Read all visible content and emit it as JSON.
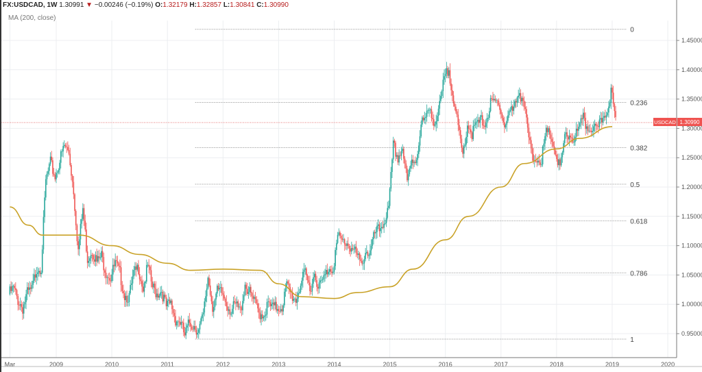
{
  "header": {
    "symbol": "FX:USDCAD, 1W",
    "last": "1.30991",
    "change": "−0.00246 (−0.19%)",
    "open_label": "O:",
    "open": "1.32179",
    "high_label": "H:",
    "high": "1.32857",
    "low_label": "L:",
    "low": "1.30841",
    "close_label": "C:",
    "close": "1.30990",
    "direction_icon": "triangle-down-icon"
  },
  "indicator_label": "MA (200, close)",
  "price_tag": {
    "symbol": "USDCAD",
    "value": "1.30990"
  },
  "colors": {
    "up": "#26a69a",
    "down": "#ef5350",
    "ma": "#c9a227",
    "price_line": "#e57373",
    "fib": "#888888"
  },
  "chart_data": {
    "type": "candlestick",
    "timeframe": "1W",
    "ylim": [
      0.91,
      1.49
    ],
    "y_ticks": [
      "0.95000",
      "1.00000",
      "1.05000",
      "1.10000",
      "1.15000",
      "1.20000",
      "1.25000",
      "1.30000",
      "1.35000",
      "1.40000",
      "1.45000"
    ],
    "x_ticks": [
      "Mar",
      "2009",
      "2010",
      "2011",
      "2012",
      "2013",
      "2014",
      "2015",
      "2016",
      "2017",
      "2018",
      "2019",
      "2020"
    ],
    "grid": true,
    "start_month": "2008-03",
    "monthly_close": [
      1.027,
      1.007,
      0.994,
      1.018,
      1.024,
      1.062,
      1.064,
      1.21,
      1.24,
      1.218,
      1.245,
      1.27,
      1.259,
      1.194,
      1.092,
      1.163,
      1.078,
      1.094,
      1.071,
      1.082,
      1.056,
      1.046,
      1.069,
      1.052,
      1.016,
      1.013,
      1.05,
      1.063,
      1.028,
      1.064,
      1.029,
      1.019,
      1.024,
      0.995,
      1.001,
      0.975,
      0.97,
      0.946,
      0.969,
      0.964,
      0.955,
      0.98,
      1.047,
      0.997,
      1.02,
      1.019,
      1.003,
      0.989,
      0.998,
      0.988,
      1.035,
      1.018,
      1.003,
      0.986,
      0.983,
      0.999,
      0.993,
      0.995,
      0.997,
      1.031,
      1.016,
      1.008,
      1.036,
      1.051,
      1.027,
      1.053,
      1.03,
      1.043,
      1.062,
      1.063,
      1.114,
      1.107,
      1.105,
      1.096,
      1.085,
      1.067,
      1.091,
      1.087,
      1.12,
      1.127,
      1.142,
      1.16,
      1.27,
      1.25,
      1.267,
      1.206,
      1.244,
      1.249,
      1.308,
      1.315,
      1.335,
      1.308,
      1.336,
      1.384,
      1.4,
      1.353,
      1.298,
      1.254,
      1.309,
      1.292,
      1.306,
      1.312,
      1.312,
      1.341,
      1.343,
      1.343,
      1.302,
      1.328,
      1.33,
      1.365,
      1.35,
      1.296,
      1.247,
      1.251,
      1.247,
      1.29,
      1.289,
      1.257,
      1.23,
      1.282,
      1.289,
      1.283,
      1.297,
      1.315,
      1.3,
      1.304,
      1.292,
      1.316,
      1.329,
      1.364,
      1.31
    ],
    "last_close": 1.3099,
    "ma200": [
      [
        "2008-03",
        1.166
      ],
      [
        "2008-07",
        1.135
      ],
      [
        "2008-10",
        1.118
      ],
      [
        "2009-06",
        1.118
      ],
      [
        "2010-01",
        1.1
      ],
      [
        "2010-07",
        1.085
      ],
      [
        "2011-01",
        1.07
      ],
      [
        "2011-06",
        1.058
      ],
      [
        "2012-01",
        1.06
      ],
      [
        "2012-09",
        1.058
      ],
      [
        "2013-01",
        1.035
      ],
      [
        "2013-06",
        1.013
      ],
      [
        "2014-01",
        1.01
      ],
      [
        "2014-06",
        1.02
      ],
      [
        "2015-01",
        1.03
      ],
      [
        "2015-06",
        1.06
      ],
      [
        "2016-01",
        1.11
      ],
      [
        "2016-06",
        1.15
      ],
      [
        "2017-01",
        1.2
      ],
      [
        "2017-06",
        1.24
      ],
      [
        "2018-01",
        1.265
      ],
      [
        "2018-06",
        1.283
      ],
      [
        "2019-01",
        1.303
      ]
    ],
    "fibonacci": {
      "high": 1.469,
      "low": 0.9406,
      "start": "2011-07",
      "end": "2019-04",
      "levels": [
        {
          "ratio": 0,
          "label": "0"
        },
        {
          "ratio": 0.236,
          "label": "0.236"
        },
        {
          "ratio": 0.382,
          "label": "0.382"
        },
        {
          "ratio": 0.5,
          "label": "0.5"
        },
        {
          "ratio": 0.618,
          "label": "0.618"
        },
        {
          "ratio": 0.786,
          "label": "0.786"
        },
        {
          "ratio": 1,
          "label": "1"
        }
      ]
    }
  }
}
